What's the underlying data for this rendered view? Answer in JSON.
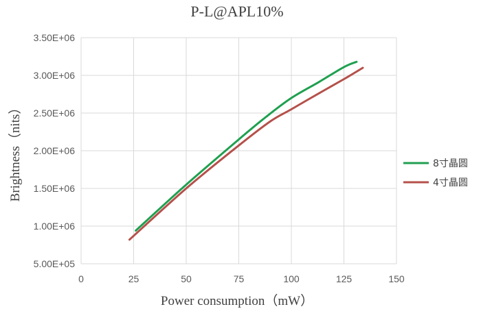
{
  "chart_data": {
    "type": "line",
    "title": "P-L@APL10%",
    "xlabel": "Power consumption（mW）",
    "ylabel": "Brightness（nits）",
    "xlim": [
      0,
      150
    ],
    "ylim": [
      500000,
      3500000
    ],
    "x_ticks": [
      0,
      25,
      50,
      75,
      100,
      125,
      150
    ],
    "x_tick_labels": [
      "0",
      "25",
      "50",
      "75",
      "100",
      "125",
      "150"
    ],
    "y_ticks": [
      500000,
      1000000,
      1500000,
      2000000,
      2500000,
      3000000,
      3500000
    ],
    "y_tick_labels": [
      "5.00E+05",
      "1.00E+06",
      "1.50E+06",
      "2.00E+06",
      "2.50E+06",
      "3.00E+06",
      "3.50E+06"
    ],
    "grid": true,
    "legend_position": "right",
    "series": [
      {
        "name": "8寸晶圆",
        "color": "#1fa050",
        "x": [
          26,
          50,
          75,
          88,
          100,
          113,
          125,
          131
        ],
        "y": [
          940000,
          1550000,
          2150000,
          2450000,
          2700000,
          2910000,
          3110000,
          3180000
        ]
      },
      {
        "name": "4寸晶圆",
        "color": "#b5504a",
        "x": [
          23,
          50,
          75,
          90,
          100,
          113,
          125,
          134
        ],
        "y": [
          820000,
          1500000,
          2070000,
          2390000,
          2550000,
          2760000,
          2950000,
          3100000
        ]
      }
    ]
  }
}
